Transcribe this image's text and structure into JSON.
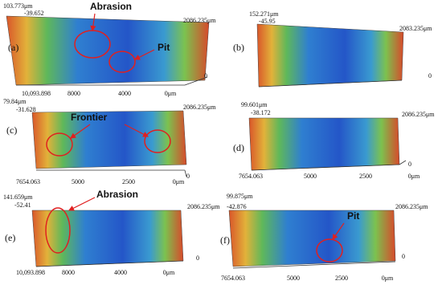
{
  "panels": [
    {
      "label": "(a)",
      "z_max": "103.773μm",
      "z_min": "-39.652",
      "y_max": "2086.235μm",
      "y_zero": "0",
      "x_ticks": [
        "10,093.898",
        "8000",
        "4000",
        "0μm"
      ],
      "annotations": [
        "Abrasion",
        "Pit"
      ]
    },
    {
      "label": "(b)",
      "z_max": "152.271μm",
      "z_min": "-45.95",
      "y_max": "2083.235μm",
      "y_zero": "0",
      "x_ticks": [],
      "annotations": []
    },
    {
      "label": "(c)",
      "z_max": "79.84μm",
      "z_min": "-31.628",
      "y_max": "2086.235μm",
      "y_zero": "0",
      "x_ticks": [
        "7654.063",
        "5000",
        "2500",
        "0μm"
      ],
      "annotations": [
        "Frontier"
      ]
    },
    {
      "label": "(d)",
      "z_max": "99.601μm",
      "z_min": "-38.172",
      "y_max": "2086.235μm",
      "y_zero": "0",
      "x_ticks": [
        "7654.063",
        "5000",
        "2500",
        "0μm"
      ],
      "annotations": []
    },
    {
      "label": "(e)",
      "z_max": "141.659μm",
      "z_min": "-52.41",
      "y_max": "2086.235μm",
      "y_zero": "0",
      "x_ticks": [
        "10,093.898",
        "8000",
        "4000",
        "0μm"
      ],
      "annotations": [
        "Abrasion"
      ]
    },
    {
      "label": "(f)",
      "z_max": "99.875μm",
      "z_min": "-42.876",
      "y_max": "2086.235μm",
      "y_zero": "0",
      "x_ticks": [
        "7654.063",
        "5000",
        "2500",
        "0μm"
      ],
      "annotations": [
        "Pit"
      ]
    }
  ]
}
